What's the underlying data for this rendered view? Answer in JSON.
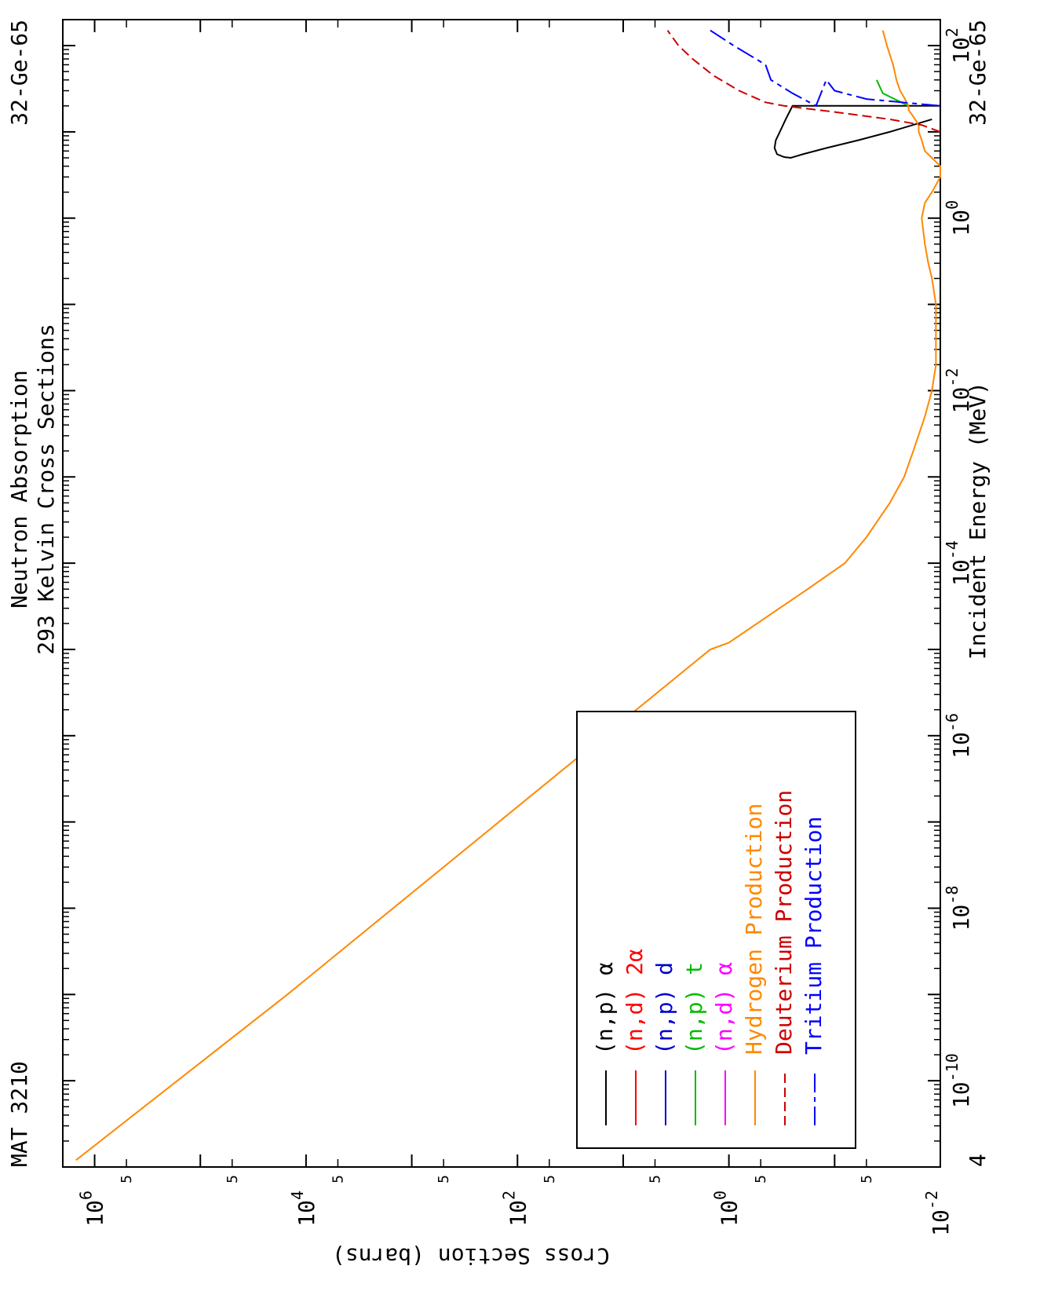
{
  "chart_data": {
    "type": "line",
    "title": "Neutron Absorption",
    "subtitle": "293 Kelvin Cross Sections",
    "material": "MAT 3210",
    "isotope": "32-Ge-65",
    "temperature_code": "4",
    "xlabel": "Incident Energy (MeV)",
    "ylabel": "Cross Section (barns)",
    "x_scale": "log",
    "y_scale": "log",
    "xlim": [
      1e-11,
      200
    ],
    "ylim": [
      0.01,
      2000000
    ],
    "grid": false,
    "legend_placement": "bottom-left",
    "x_ticks": [
      {
        "base": "10",
        "exp": "-10",
        "value": 1e-10
      },
      {
        "base": "10",
        "exp": "-8",
        "value": 1e-08
      },
      {
        "base": "10",
        "exp": "-6",
        "value": 1e-06
      },
      {
        "base": "10",
        "exp": "-4",
        "value": 0.0001
      },
      {
        "base": "10",
        "exp": "-2",
        "value": 0.01
      },
      {
        "base": "10",
        "exp": "0",
        "value": 1
      },
      {
        "base": "10",
        "exp": "2",
        "value": 100
      }
    ],
    "y_ticks": [
      {
        "base": "10",
        "exp": "6",
        "value": 1000000
      },
      {
        "base": "10",
        "exp": "4",
        "value": 10000
      },
      {
        "base": "10",
        "exp": "2",
        "value": 100
      },
      {
        "base": "10",
        "exp": "0",
        "value": 1
      },
      {
        "base": "10",
        "exp": "-2",
        "value": 0.01
      }
    ],
    "y_minor_label": "5",
    "series": [
      {
        "name": "(n,p) α",
        "name_main": "(n,p) ",
        "name_suffix": "α",
        "color": "#000000",
        "dash": "",
        "x": [
          14.0,
          10.0,
          8.0,
          6.5,
          5.5,
          5.0,
          5.1,
          5.5,
          6.5,
          8.0,
          10.0,
          14.0,
          20.0,
          20.0
        ],
        "y": [
          0.012,
          0.03,
          0.06,
          0.12,
          0.2,
          0.26,
          0.3,
          0.35,
          0.37,
          0.36,
          0.33,
          0.29,
          0.25,
          0.01
        ]
      },
      {
        "name": "(n,d) 2α",
        "name_main": "(n,d) ",
        "name_suffix": "2α",
        "color": "#ff0000",
        "dash": "",
        "x": [],
        "y": []
      },
      {
        "name": "(n,p) d",
        "name_main": "(n,p) ",
        "name_suffix": "d",
        "color": "#0000cc",
        "dash": "",
        "x": [],
        "y": []
      },
      {
        "name": "(n,p) t",
        "name_main": "(n,p) ",
        "name_suffix": "t",
        "color": "#00bb00",
        "dash": "",
        "x": [
          20.0,
          28.0,
          40.0
        ],
        "y": [
          0.02,
          0.035,
          0.04
        ]
      },
      {
        "name": "(n,d) α",
        "name_main": "(n,d) ",
        "name_suffix": "α",
        "color": "#ff00ff",
        "dash": "",
        "x": [],
        "y": []
      },
      {
        "name": "Hydrogen Production",
        "name_main": "Hydrogen ",
        "name_suffix": "Production",
        "color": "#ff8800",
        "dash": "",
        "x": [
          1.2e-11,
          1e-09,
          1e-07,
          1e-06,
          1e-05,
          1.2e-05,
          5e-05,
          0.0001,
          0.0002,
          0.0005,
          0.001,
          0.002,
          0.005,
          0.01,
          0.02,
          0.05,
          0.1,
          0.2,
          0.3,
          0.5,
          1.0,
          1.5,
          2.0,
          3.0,
          4.0,
          5.0,
          6.0,
          8.0,
          10.0,
          12.0,
          15.0,
          18.0,
          20.0,
          25.0,
          30.0,
          40.0,
          60.0,
          100.0,
          150.0
        ],
        "y": [
          1500000,
          15000,
          150,
          15,
          1.5,
          1.0,
          0.18,
          0.08,
          0.05,
          0.03,
          0.022,
          0.018,
          0.014,
          0.012,
          0.011,
          0.011,
          0.011,
          0.012,
          0.013,
          0.014,
          0.015,
          0.014,
          0.012,
          0.01,
          0.009,
          0.012,
          0.014,
          0.015,
          0.016,
          0.016,
          0.018,
          0.02,
          0.02,
          0.022,
          0.024,
          0.026,
          0.028,
          0.032,
          0.035
        ]
      },
      {
        "name": "Deuterium Production",
        "name_main": "Deuterium ",
        "name_suffix": "Production",
        "color": "#cc0000",
        "dash": "12,6",
        "x": [
          10.0,
          12.0,
          14.0,
          17.0,
          20.0,
          22.0,
          30.0,
          45.0,
          70.0,
          100.0,
          150.0
        ],
        "y": [
          0.01,
          0.015,
          0.03,
          0.1,
          0.3,
          0.45,
          0.8,
          1.4,
          2.2,
          3.0,
          3.8
        ]
      },
      {
        "name": "Tritium Production",
        "name_main": "Tritium ",
        "name_suffix": "Production",
        "color": "#0000ff",
        "dash": "24,6,6,6",
        "x": [
          20.0,
          24.0,
          30.0,
          40.0,
          20.0,
          28.0,
          40.0,
          60.0,
          100.0,
          150.0
        ],
        "y": [
          0.01,
          0.05,
          0.1,
          0.12,
          0.15,
          0.25,
          0.4,
          0.45,
          0.9,
          1.5
        ]
      }
    ]
  }
}
